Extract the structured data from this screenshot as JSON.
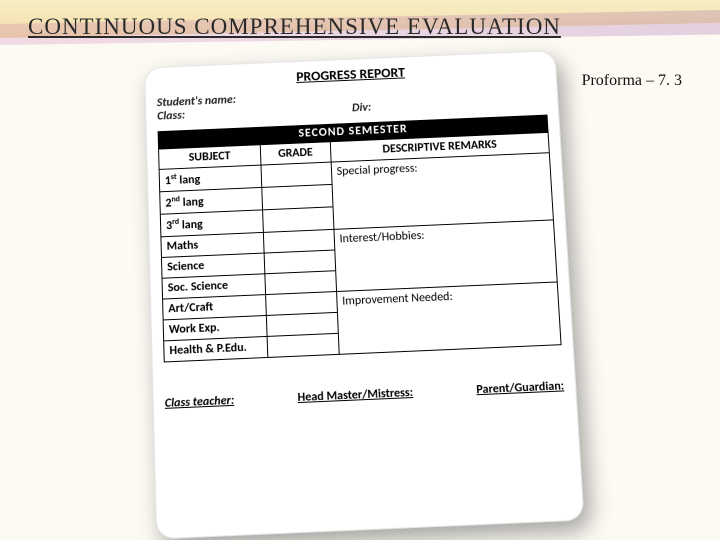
{
  "slide": {
    "title": "CONTINUOUS  COMPREHENSIVE  EVALUATION",
    "proforma_label": "Proforma – 7. 3"
  },
  "report": {
    "title": "PROGRESS REPORT",
    "student_name_label": "Student's name:",
    "class_label": "Class:",
    "div_label": "Div:",
    "semester_band": "SECOND  SEMESTER",
    "headers": {
      "subject": "SUBJECT",
      "grade": "GRADE",
      "remarks": "DESCRIPTIVE REMARKS"
    },
    "subjects": {
      "lang1_pre": "1",
      "lang1_sup": "st",
      "lang1_post": " lang",
      "lang2_pre": "2",
      "lang2_sup": "nd",
      "lang2_post": " lang",
      "lang3_pre": "3",
      "lang3_sup": "rd",
      "lang3_post": " lang",
      "maths": "Maths",
      "science": "Science",
      "soc": "Soc. Science",
      "art": "Art/Craft",
      "work": "Work Exp.",
      "health": "Health & P.Edu."
    },
    "remarks_sections": {
      "special": "Special progress:",
      "interest": "Interest/Hobbies:",
      "improvement": "Improvement Needed:"
    },
    "footer": {
      "class_teacher": "Class teacher:",
      "head": "Head Master/Mistress:",
      "parent": "Parent/Guardian:"
    }
  },
  "style": {
    "card_bg": "#ffffff",
    "band_bg": "#000000",
    "band_fg": "#ffffff",
    "border_color": "#000000"
  }
}
